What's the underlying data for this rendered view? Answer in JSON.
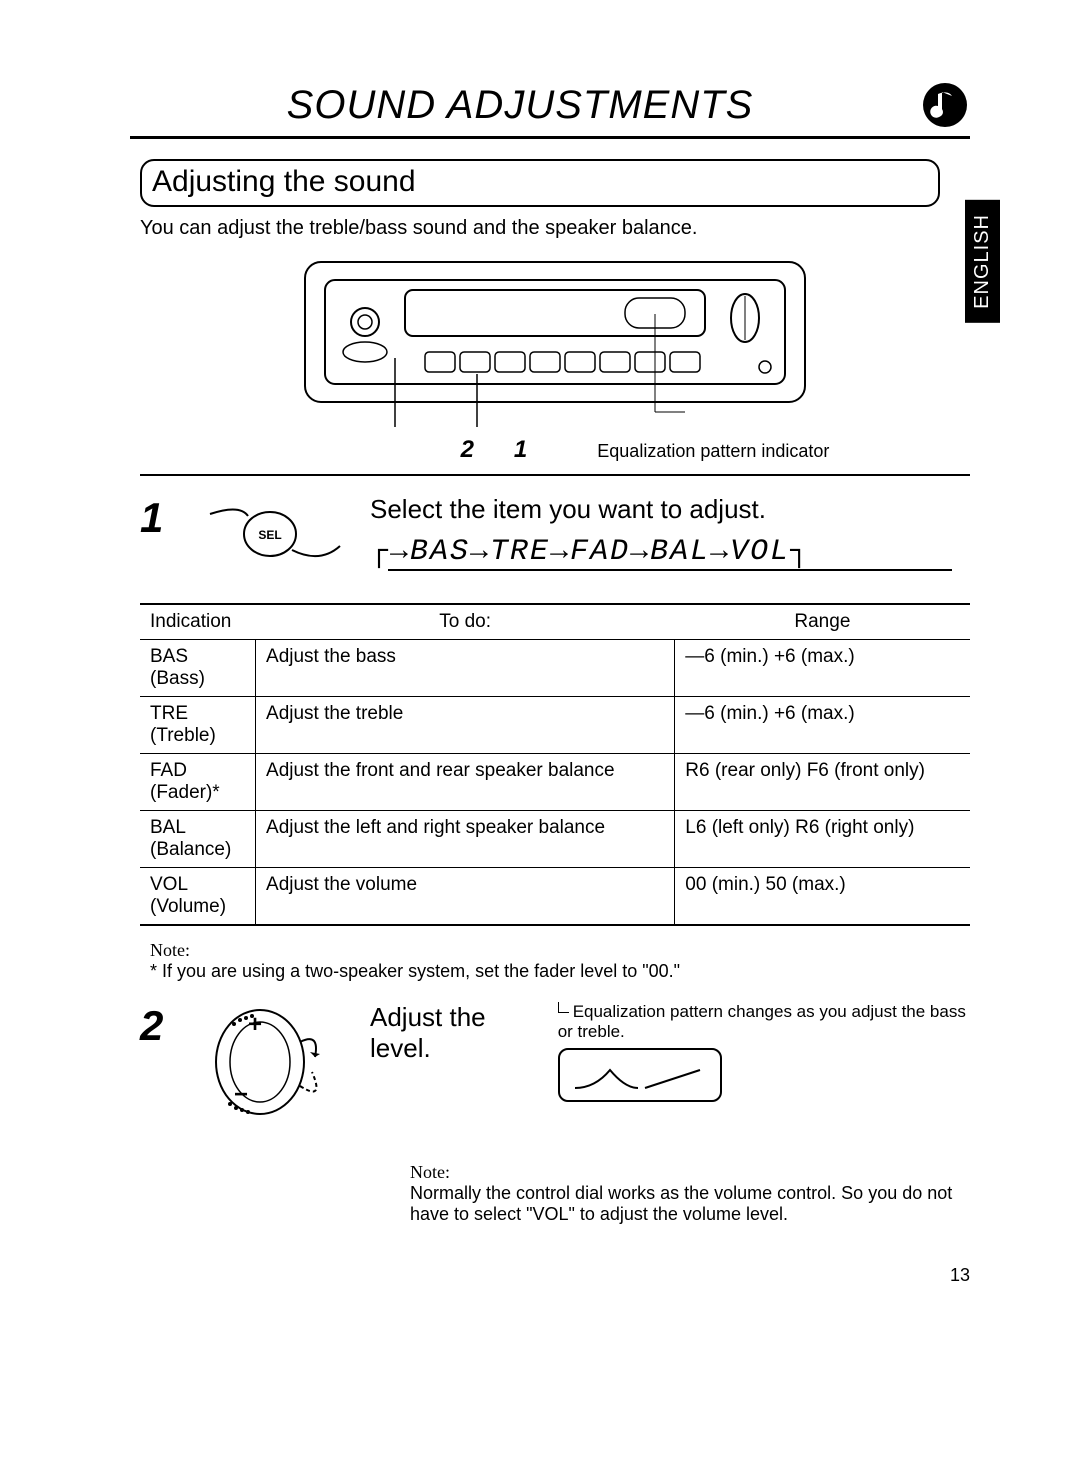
{
  "page_number": "13",
  "language_tab": "ENGLISH",
  "title": "SOUND ADJUSTMENTS",
  "section_heading": "Adjusting the sound",
  "intro_text": "You can adjust the treble/bass sound and the speaker balance.",
  "stereo_caption_nums": [
    "2",
    "1"
  ],
  "stereo_caption_text": "Equalization pattern indicator",
  "step1": {
    "num": "1",
    "title": "Select the item you want to adjust.",
    "sel_label": "SEL",
    "flow": [
      "BAS",
      "TRE",
      "FAD",
      "BAL",
      "VOL"
    ]
  },
  "table": {
    "headers": [
      "Indication",
      "To do:",
      "Range"
    ],
    "rows": [
      {
        "ind": "BAS",
        "sub": "(Bass)",
        "todo": "Adjust the bass",
        "range": "—6 (min.)   +6 (max.)"
      },
      {
        "ind": "TRE",
        "sub": "(Treble)",
        "todo": "Adjust the treble",
        "range": "—6 (min.)   +6 (max.)"
      },
      {
        "ind": "FAD",
        "sub": "(Fader)*",
        "todo": "Adjust the front and rear speaker balance",
        "range": "R6 (rear only)   F6 (front only)"
      },
      {
        "ind": "BAL",
        "sub": "(Balance)",
        "todo": "Adjust the left and right speaker balance",
        "range": "L6 (left only)   R6 (right only)"
      },
      {
        "ind": "VOL",
        "sub": "(Volume)",
        "todo": "Adjust the volume",
        "range": "00 (min.)   50 (max.)"
      }
    ]
  },
  "note1_label": "Note:",
  "note1_text": "*  If you are using a two-speaker system, set the fader level to \"00.\"",
  "step2": {
    "num": "2",
    "title": "Adjust the level.",
    "eq_note": "Equalization pattern changes as you adjust the bass or treble."
  },
  "note2_label": "Note:",
  "note2_text": "Normally the control dial works as the volume control. So you do not have to select \"VOL\" to adjust the volume level.",
  "colors": {
    "text": "#000000",
    "bg": "#ffffff",
    "tab_bg": "#000000",
    "tab_text": "#ffffff"
  }
}
